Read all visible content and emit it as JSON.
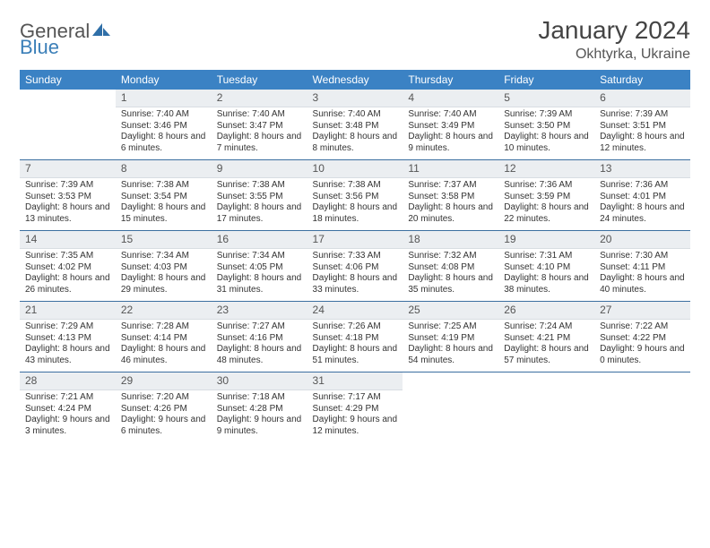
{
  "brand": {
    "part1": "General",
    "part2": "Blue"
  },
  "title": "January 2024",
  "location": "Okhtyrka, Ukraine",
  "colors": {
    "header_bg": "#3b82c4",
    "header_text": "#ffffff",
    "daynum_bg": "#ebeef1",
    "week_divider": "#3b6fa0",
    "brand_blue": "#3b7fb8"
  },
  "weekdays": [
    "Sunday",
    "Monday",
    "Tuesday",
    "Wednesday",
    "Thursday",
    "Friday",
    "Saturday"
  ],
  "weeks": [
    [
      null,
      {
        "n": "1",
        "sr": "7:40 AM",
        "ss": "3:46 PM",
        "dl": "8 hours and 6 minutes."
      },
      {
        "n": "2",
        "sr": "7:40 AM",
        "ss": "3:47 PM",
        "dl": "8 hours and 7 minutes."
      },
      {
        "n": "3",
        "sr": "7:40 AM",
        "ss": "3:48 PM",
        "dl": "8 hours and 8 minutes."
      },
      {
        "n": "4",
        "sr": "7:40 AM",
        "ss": "3:49 PM",
        "dl": "8 hours and 9 minutes."
      },
      {
        "n": "5",
        "sr": "7:39 AM",
        "ss": "3:50 PM",
        "dl": "8 hours and 10 minutes."
      },
      {
        "n": "6",
        "sr": "7:39 AM",
        "ss": "3:51 PM",
        "dl": "8 hours and 12 minutes."
      }
    ],
    [
      {
        "n": "7",
        "sr": "7:39 AM",
        "ss": "3:53 PM",
        "dl": "8 hours and 13 minutes."
      },
      {
        "n": "8",
        "sr": "7:38 AM",
        "ss": "3:54 PM",
        "dl": "8 hours and 15 minutes."
      },
      {
        "n": "9",
        "sr": "7:38 AM",
        "ss": "3:55 PM",
        "dl": "8 hours and 17 minutes."
      },
      {
        "n": "10",
        "sr": "7:38 AM",
        "ss": "3:56 PM",
        "dl": "8 hours and 18 minutes."
      },
      {
        "n": "11",
        "sr": "7:37 AM",
        "ss": "3:58 PM",
        "dl": "8 hours and 20 minutes."
      },
      {
        "n": "12",
        "sr": "7:36 AM",
        "ss": "3:59 PM",
        "dl": "8 hours and 22 minutes."
      },
      {
        "n": "13",
        "sr": "7:36 AM",
        "ss": "4:01 PM",
        "dl": "8 hours and 24 minutes."
      }
    ],
    [
      {
        "n": "14",
        "sr": "7:35 AM",
        "ss": "4:02 PM",
        "dl": "8 hours and 26 minutes."
      },
      {
        "n": "15",
        "sr": "7:34 AM",
        "ss": "4:03 PM",
        "dl": "8 hours and 29 minutes."
      },
      {
        "n": "16",
        "sr": "7:34 AM",
        "ss": "4:05 PM",
        "dl": "8 hours and 31 minutes."
      },
      {
        "n": "17",
        "sr": "7:33 AM",
        "ss": "4:06 PM",
        "dl": "8 hours and 33 minutes."
      },
      {
        "n": "18",
        "sr": "7:32 AM",
        "ss": "4:08 PM",
        "dl": "8 hours and 35 minutes."
      },
      {
        "n": "19",
        "sr": "7:31 AM",
        "ss": "4:10 PM",
        "dl": "8 hours and 38 minutes."
      },
      {
        "n": "20",
        "sr": "7:30 AM",
        "ss": "4:11 PM",
        "dl": "8 hours and 40 minutes."
      }
    ],
    [
      {
        "n": "21",
        "sr": "7:29 AM",
        "ss": "4:13 PM",
        "dl": "8 hours and 43 minutes."
      },
      {
        "n": "22",
        "sr": "7:28 AM",
        "ss": "4:14 PM",
        "dl": "8 hours and 46 minutes."
      },
      {
        "n": "23",
        "sr": "7:27 AM",
        "ss": "4:16 PM",
        "dl": "8 hours and 48 minutes."
      },
      {
        "n": "24",
        "sr": "7:26 AM",
        "ss": "4:18 PM",
        "dl": "8 hours and 51 minutes."
      },
      {
        "n": "25",
        "sr": "7:25 AM",
        "ss": "4:19 PM",
        "dl": "8 hours and 54 minutes."
      },
      {
        "n": "26",
        "sr": "7:24 AM",
        "ss": "4:21 PM",
        "dl": "8 hours and 57 minutes."
      },
      {
        "n": "27",
        "sr": "7:22 AM",
        "ss": "4:22 PM",
        "dl": "9 hours and 0 minutes."
      }
    ],
    [
      {
        "n": "28",
        "sr": "7:21 AM",
        "ss": "4:24 PM",
        "dl": "9 hours and 3 minutes."
      },
      {
        "n": "29",
        "sr": "7:20 AM",
        "ss": "4:26 PM",
        "dl": "9 hours and 6 minutes."
      },
      {
        "n": "30",
        "sr": "7:18 AM",
        "ss": "4:28 PM",
        "dl": "9 hours and 9 minutes."
      },
      {
        "n": "31",
        "sr": "7:17 AM",
        "ss": "4:29 PM",
        "dl": "9 hours and 12 minutes."
      },
      null,
      null,
      null
    ]
  ],
  "labels": {
    "sunrise": "Sunrise:",
    "sunset": "Sunset:",
    "daylight": "Daylight:"
  }
}
